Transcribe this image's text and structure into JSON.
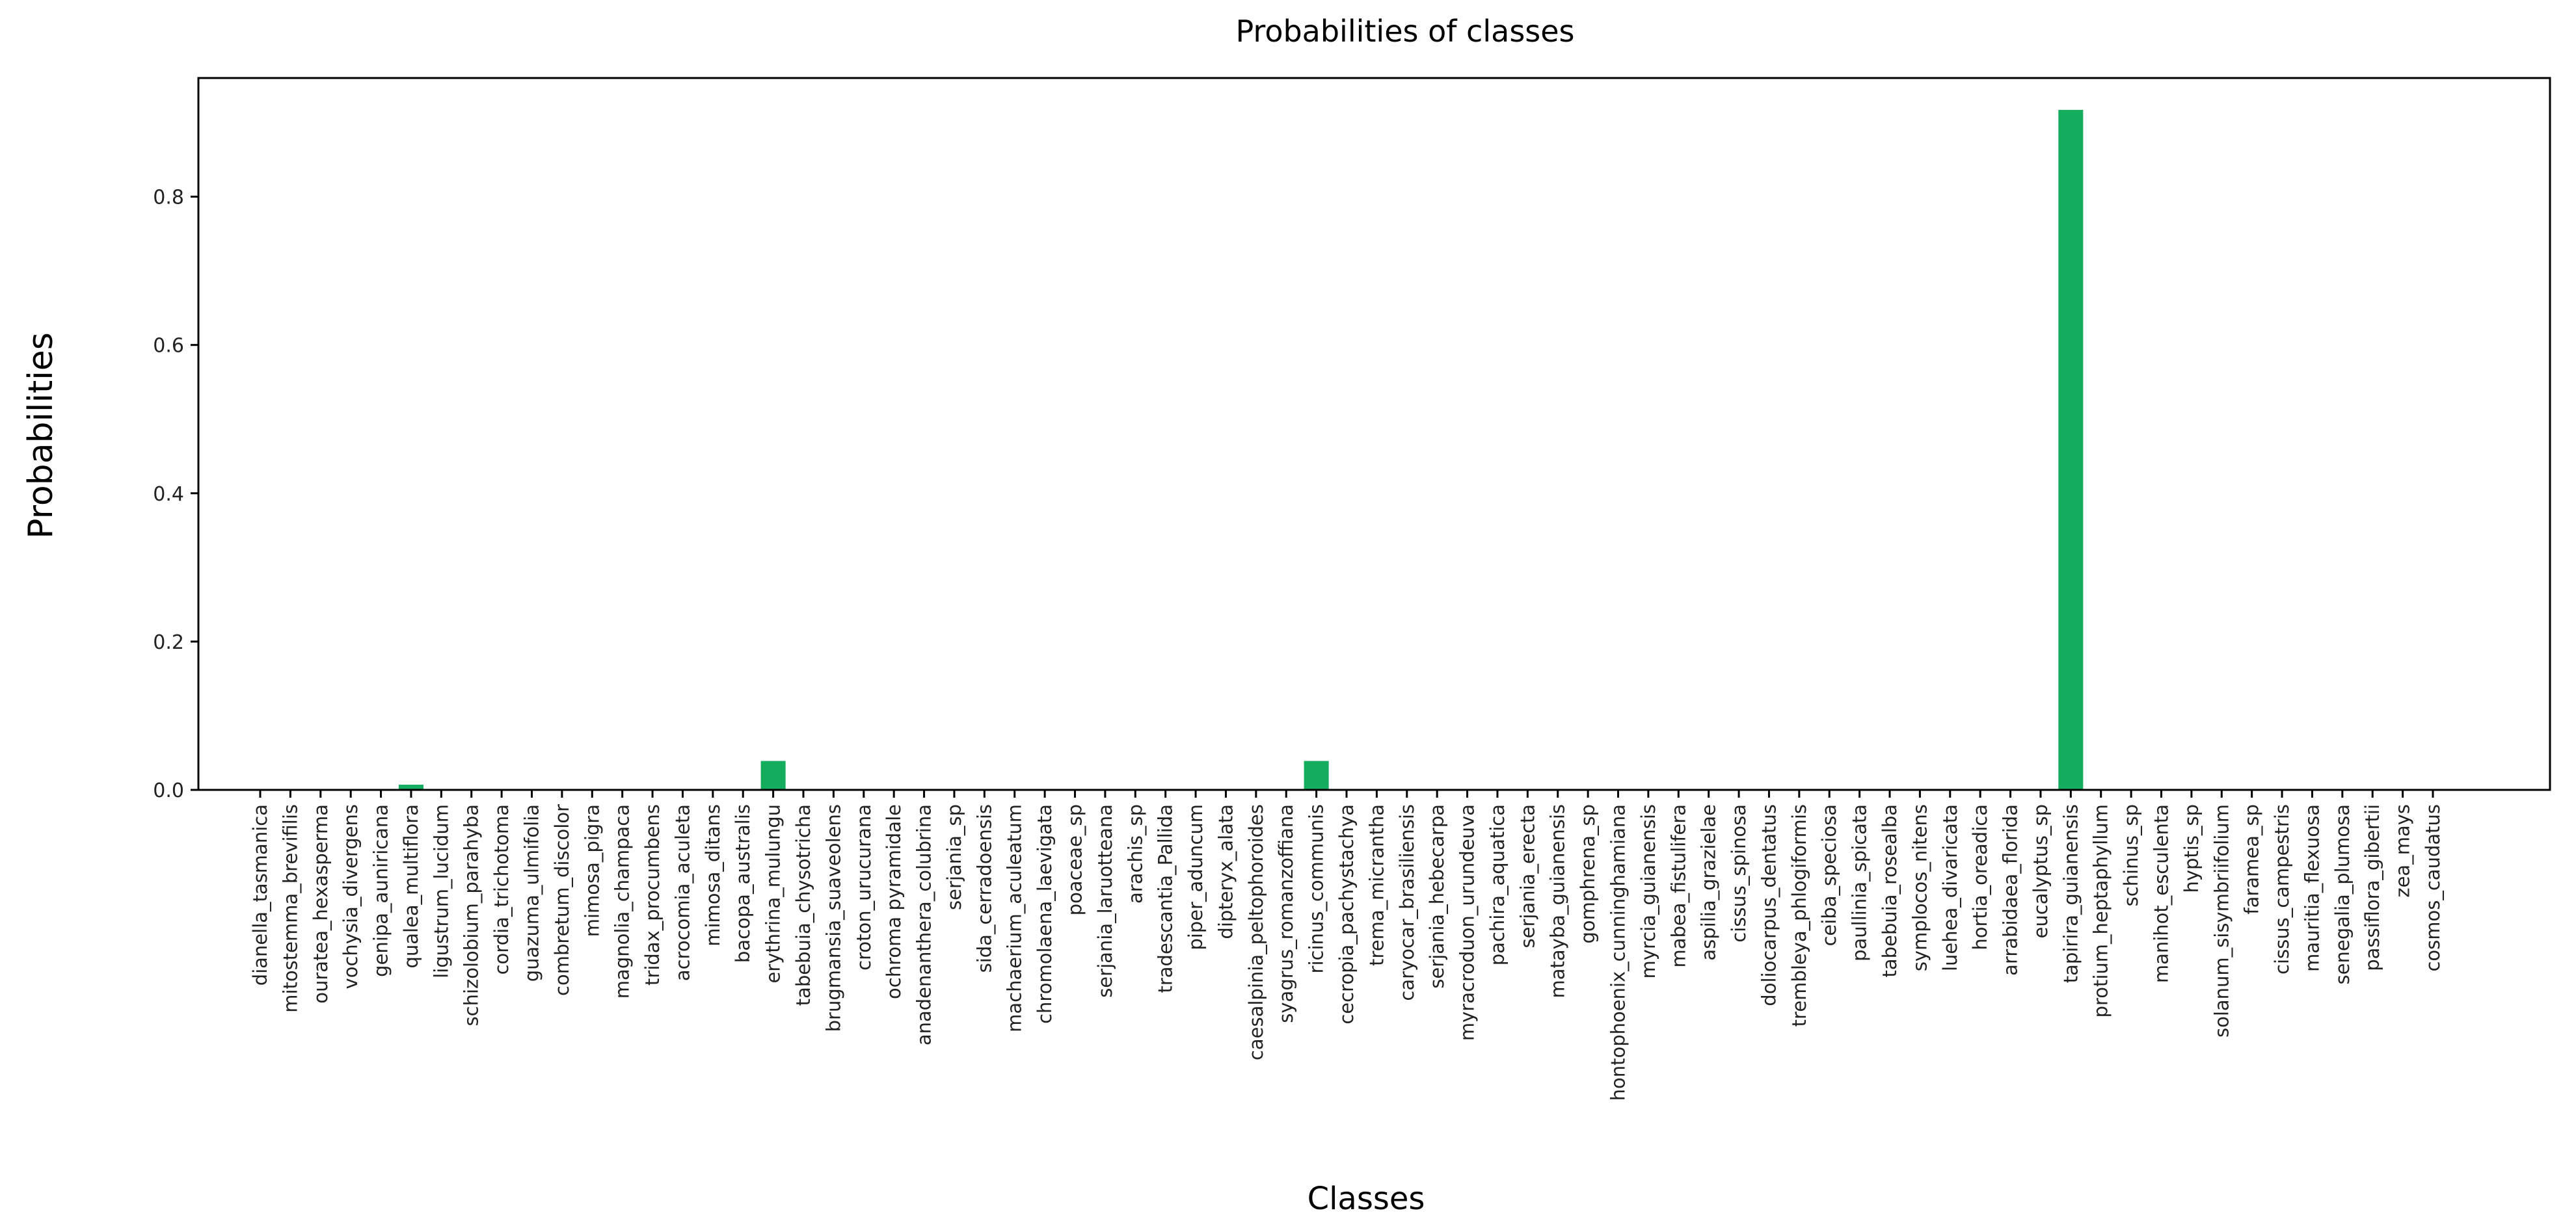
{
  "chart_data": {
    "type": "bar",
    "title": "Probabilities of classes",
    "xlabel": "Classes",
    "ylabel": "Probabilities",
    "ylim": [
      0,
      0.96
    ],
    "yticks": [
      "0.0",
      "0.2",
      "0.4",
      "0.6",
      "0.8"
    ],
    "ytick_values": [
      0.0,
      0.2,
      0.4,
      0.6,
      0.8
    ],
    "grid": false,
    "bar_color": "#13ad5d",
    "categories": [
      "dianella_tasmanica",
      "mitostemma_brevifilis",
      "ouratea_hexasperma",
      "vochysia_divergens",
      "genipa_auniricana",
      "qualea_multiflora",
      "ligustrum_lucidum",
      "schizolobium_parahyba",
      "cordia_trichotoma",
      "guazuma_ulmifolia",
      "combretum_discolor",
      "mimosa_pigra",
      "magnolia_champaca",
      "tridax_procumbens",
      "acrocomia_aculeta",
      "mimosa_ditans",
      "bacopa_australis",
      "erythrina_mulungu",
      "tabebuia_chysotricha",
      "brugmansia_suaveolens",
      "croton_urucurana",
      "ochroma pyramidale",
      "anadenanthera_colubrina",
      "serjania_sp",
      "sida_cerradoensis",
      "machaerium_aculeatum",
      "chromolaena_laevigata",
      "poaceae_sp",
      "serjania_laruotteana",
      "arachis_sp",
      "tradescantia_Pallida",
      "piper_aduncum",
      "dipteryx_alata",
      "caesalpinia_peltophoroides",
      "syagrus_romanzoffiana",
      "ricinus_communis",
      "cecropia_pachystachya",
      "trema_micrantha",
      "caryocar_brasiliensis",
      "serjania_hebecarpa",
      "myracroduon_urundeuva",
      "pachira_aquatica",
      "serjania_erecta",
      "matayba_guianensis",
      "gomphrena_sp",
      "hontophoenix_cunninghamiana",
      "myrcia_guianensis",
      "mabea_fistulifera",
      "aspilia_grazielae",
      "cissus_spinosa",
      "doliocarpus_dentatus",
      "trembleya_phlogiformis",
      "ceiba_speciosa",
      "paullinia_spicata",
      "tabebuia_rosealba",
      "symplocos_nitens",
      "luehea_divaricata",
      "hortia_oreadica",
      "arrabidaea_florida",
      "eucalyptus_sp",
      "tapirira_guianensis",
      "protium_heptaphyllum",
      "schinus_sp",
      "manihot_esculenta",
      "hyptis_sp",
      "solanum_sisymbriifolium",
      "faramea_sp",
      "cissus_campestris",
      "mauritia_flexuosa",
      "senegalia_plumosa",
      "passiflora_gibertii",
      "zea_mays",
      "cosmos_caudatus"
    ],
    "values": [
      0,
      0,
      0,
      0,
      0,
      0.007,
      0,
      0,
      0,
      0,
      0,
      0,
      0,
      0,
      0,
      0,
      0,
      0.039,
      0,
      0,
      0,
      0,
      0,
      0,
      0,
      0,
      0,
      0,
      0,
      0,
      0,
      0,
      0,
      0,
      0,
      0.039,
      0,
      0,
      0,
      0,
      0,
      0,
      0,
      0,
      0,
      0,
      0,
      0,
      0,
      0,
      0,
      0,
      0,
      0,
      0,
      0,
      0,
      0,
      0,
      0,
      0.917,
      0,
      0,
      0,
      0,
      0,
      0,
      0,
      0,
      0,
      0,
      0,
      0
    ]
  }
}
